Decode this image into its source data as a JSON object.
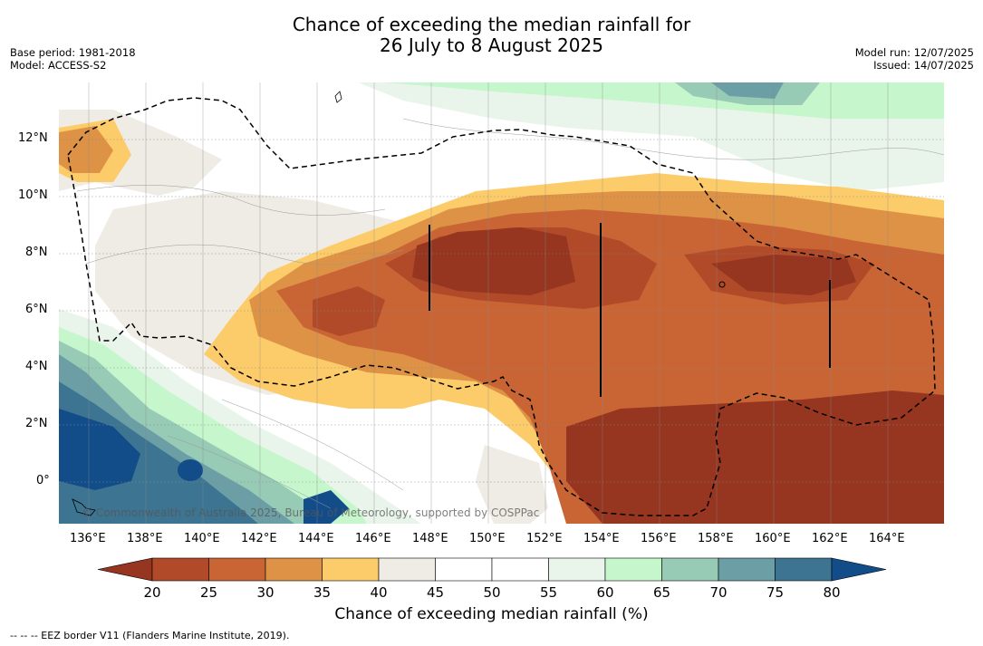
{
  "header": {
    "title_line1": "Chance of exceeding the median rainfall for",
    "title_line2": "26 July to 8 August 2025",
    "base_period": "Base period: 1981-2018",
    "model": "Model: ACCESS-S2",
    "model_run": "Model run: 12/07/2025",
    "issued": "Issued: 14/07/2025"
  },
  "map": {
    "lat_labels": [
      "12°N",
      "10°N",
      "8°N",
      "6°N",
      "4°N",
      "2°N",
      "0°"
    ],
    "lon_labels": [
      "136°E",
      "138°E",
      "140°E",
      "142°E",
      "144°E",
      "146°E",
      "148°E",
      "150°E",
      "152°E",
      "154°E",
      "156°E",
      "158°E",
      "160°E",
      "162°E",
      "164°E"
    ],
    "copyright": "© Commonwealth of Australia 2025, Bureau of Meteorology, supported by COSPPac",
    "eez_legend": "-- -- -- EEZ border V11 (Flanders Marine Institute, 2019)."
  },
  "colorbar": {
    "title": "Chance of exceeding median rainfall (%)",
    "ticks": [
      "20",
      "25",
      "30",
      "35",
      "40",
      "45",
      "50",
      "55",
      "60",
      "65",
      "70",
      "75",
      "80"
    ],
    "colors": [
      "#963520",
      "#B04A28",
      "#C96535",
      "#DD9245",
      "#FDCC6A",
      "#EFEBE5",
      "#FFFFFF",
      "#FFFFFF",
      "#E9F5EA",
      "#C6F7CC",
      "#97CBB6",
      "#6C9FA5",
      "#3C7492",
      "#124D8A"
    ]
  }
}
